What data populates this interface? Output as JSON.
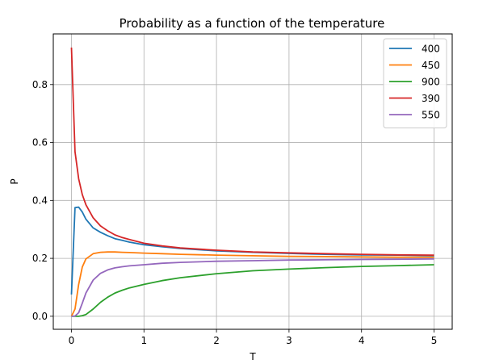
{
  "chart_data": {
    "type": "line",
    "title": "Probability as a function of the temperature",
    "xlabel": "T",
    "ylabel": "P",
    "xlim": [
      -0.25,
      5.25
    ],
    "ylim": [
      -0.045,
      0.975
    ],
    "xticks": [
      0,
      1,
      2,
      3,
      4,
      5
    ],
    "xtick_labels": [
      "0",
      "1",
      "2",
      "3",
      "4",
      "5"
    ],
    "yticks": [
      0.0,
      0.2,
      0.4,
      0.6,
      0.8
    ],
    "ytick_labels": [
      "0.0",
      "0.2",
      "0.4",
      "0.6",
      "0.8"
    ],
    "grid": true,
    "legend_position": "top-right",
    "x": [
      0.0,
      0.05,
      0.1,
      0.15,
      0.2,
      0.3,
      0.4,
      0.5,
      0.6,
      0.7,
      0.8,
      1.0,
      1.25,
      1.5,
      2.0,
      2.5,
      3.0,
      3.5,
      4.0,
      4.5,
      5.0
    ],
    "series": [
      {
        "name": "400",
        "color": "#1f77b4",
        "values": [
          0.075,
          0.375,
          0.377,
          0.36,
          0.335,
          0.305,
          0.29,
          0.278,
          0.268,
          0.262,
          0.256,
          0.247,
          0.24,
          0.234,
          0.226,
          0.221,
          0.217,
          0.214,
          0.212,
          0.211,
          0.209
        ]
      },
      {
        "name": "450",
        "color": "#ff7f0e",
        "values": [
          0.0,
          0.025,
          0.11,
          0.17,
          0.198,
          0.216,
          0.221,
          0.222,
          0.222,
          0.221,
          0.22,
          0.218,
          0.216,
          0.214,
          0.211,
          0.209,
          0.207,
          0.206,
          0.205,
          0.204,
          0.204
        ]
      },
      {
        "name": "900",
        "color": "#2ca02c",
        "values": [
          0.0,
          0.0,
          0.0,
          0.002,
          0.006,
          0.025,
          0.048,
          0.066,
          0.08,
          0.09,
          0.098,
          0.11,
          0.123,
          0.133,
          0.147,
          0.157,
          0.163,
          0.168,
          0.172,
          0.175,
          0.178
        ]
      },
      {
        "name": "390",
        "color": "#d62728",
        "values": [
          0.928,
          0.568,
          0.475,
          0.42,
          0.385,
          0.34,
          0.312,
          0.295,
          0.281,
          0.272,
          0.265,
          0.252,
          0.243,
          0.236,
          0.228,
          0.222,
          0.219,
          0.216,
          0.214,
          0.212,
          0.211
        ]
      },
      {
        "name": "550",
        "color": "#9467bd",
        "values": [
          0.0,
          0.001,
          0.012,
          0.045,
          0.08,
          0.125,
          0.148,
          0.16,
          0.167,
          0.171,
          0.174,
          0.178,
          0.183,
          0.186,
          0.19,
          0.192,
          0.194,
          0.195,
          0.196,
          0.197,
          0.198
        ]
      }
    ]
  }
}
